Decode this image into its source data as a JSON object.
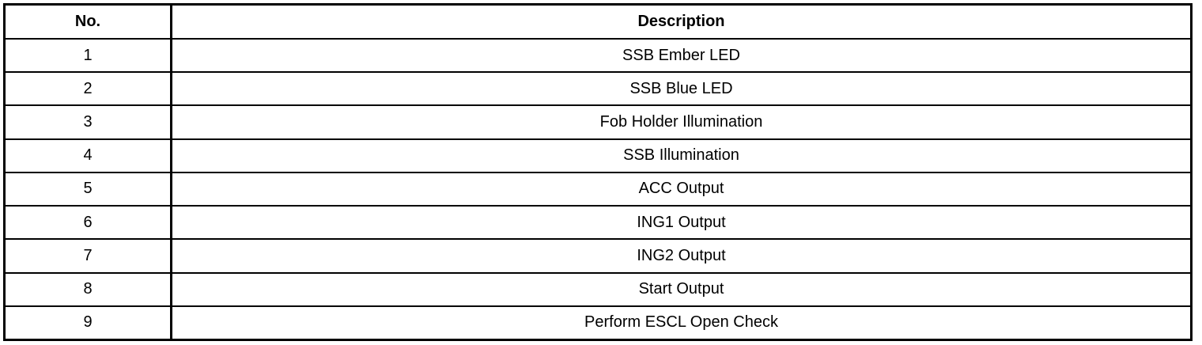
{
  "table": {
    "headers": [
      "No.",
      "Description"
    ],
    "rows": [
      [
        "1",
        "SSB Ember LED"
      ],
      [
        "2",
        "SSB Blue LED"
      ],
      [
        "3",
        "Fob Holder Illumination"
      ],
      [
        "4",
        "SSB Illumination"
      ],
      [
        "5",
        "ACC Output"
      ],
      [
        "6",
        "ING1 Output"
      ],
      [
        "7",
        "ING2 Output"
      ],
      [
        "8",
        "Start Output"
      ],
      [
        "9",
        "Perform ESCL Open Check"
      ]
    ]
  }
}
